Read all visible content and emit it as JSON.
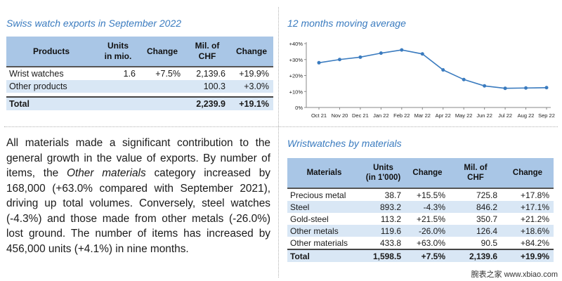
{
  "exports": {
    "title": "Swiss watch exports in September 2022",
    "headers": [
      "Products",
      "Units\nin mio.",
      "Change",
      "Mil. of\nCHF",
      "Change"
    ],
    "rows": [
      [
        "Wrist watches",
        "1.6",
        "+7.5%",
        "2,139.6",
        "+19.9%"
      ],
      [
        "Other products",
        "",
        "",
        "100.3",
        "+3.0%"
      ]
    ],
    "total": [
      "Total",
      "",
      "",
      "2,239.9",
      "+19.1%"
    ]
  },
  "average": {
    "title": "12 months moving average"
  },
  "chart_data": {
    "type": "line",
    "title": "12 months moving average",
    "categories": [
      "Oct 21",
      "Nov 20",
      "Dec 21",
      "Jan 22",
      "Feb 22",
      "Mar 22",
      "Apr 22",
      "May 22",
      "Jun 22",
      "Jul 22",
      "Aug 22",
      "Sep 22"
    ],
    "series": [
      {
        "values": [
          28,
          30,
          31.5,
          34,
          36,
          33.5,
          23.5,
          17.5,
          13.5,
          12,
          12.2,
          12.4
        ],
        "color": "#3a7bbf"
      }
    ],
    "yticks": [
      "0%",
      "+10%",
      "+20%",
      "+30%",
      "+40%"
    ],
    "ylim": [
      0,
      40
    ],
    "grid": false,
    "legend": "none"
  },
  "summary": {
    "segments": [
      {
        "text": "All materials made a significant contribution to the general growth in the value of exports. By number of items, the ",
        "italic": false
      },
      {
        "text": "Other materials",
        "italic": true
      },
      {
        "text": " category increased by 168,000 (+63.0% compared with September 2021), driving up total volumes. Conversely, steel watches (-4.3%) and those made from other metals (-26.0%) lost ground. The number of items has increased by 456,000 units (+4.1%) in nine months.",
        "italic": false
      }
    ]
  },
  "materials": {
    "title": "Wristwatches by materials",
    "headers": [
      "Materials",
      "Units\n(in 1'000)",
      "Change",
      "Mil. of\nCHF",
      "Change"
    ],
    "rows": [
      [
        "Precious metal",
        "38.7",
        "+15.5%",
        "725.8",
        "+17.8%"
      ],
      [
        "Steel",
        "893.2",
        "-4.3%",
        "846.2",
        "+17.1%"
      ],
      [
        "Gold-steel",
        "113.2",
        "+21.5%",
        "350.7",
        "+21.2%"
      ],
      [
        "Other metals",
        "119.6",
        "-26.0%",
        "126.4",
        "+18.6%"
      ],
      [
        "Other materials",
        "433.8",
        "+63.0%",
        "90.5",
        "+84.2%"
      ]
    ],
    "total": [
      "Total",
      "1,598.5",
      "+7.5%",
      "2,139.6",
      "+19.9%"
    ]
  },
  "watermark": "腕表之家 www.xbiao.com"
}
